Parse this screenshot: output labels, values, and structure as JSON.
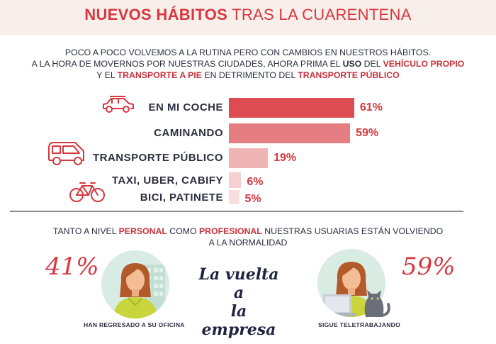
{
  "header": {
    "title_bold": "NUEVOS HÁBITOS",
    "title_light": "TRAS LA CUARENTENA"
  },
  "intro": {
    "line1": "POCO A POCO VOLVEMOS A LA RUTINA PERO CON CAMBIOS EN NUESTROS HÁBITOS.",
    "line2_a": "A LA HORA DE MOVERNOS POR NUESTRAS CIUDADES, AHORA PRIMA EL ",
    "line2_b": "USO",
    "line2_c": " DEL ",
    "line2_d": "VEHÍCULO PROPIO",
    "line3_a": "Y EL ",
    "line3_b": "TRANSPORTE A PIE",
    "line3_c": " EN DETRIMENTO DEL ",
    "line3_d": "TRANSPORTE PÚBLICO"
  },
  "chart_data": {
    "type": "bar",
    "orientation": "horizontal",
    "categories": [
      "EN MI COCHE",
      "CAMINANDO",
      "TRANSPORTE PÚBLICO",
      "TAXI, UBER, CABIFY",
      "BICI, PATINETE"
    ],
    "values": [
      61,
      59,
      19,
      6,
      5
    ],
    "value_labels": [
      "61%",
      "59%",
      "19%",
      "6%",
      "5%"
    ],
    "bar_colors": [
      "#dc4c50",
      "#e57e83",
      "#f1b4b5",
      "#f6cfd0",
      "#f9dedf"
    ],
    "value_color": "#d7373f",
    "xlim": [
      0,
      100
    ]
  },
  "icons": {
    "car": "car-icon",
    "bus": "bus-icon",
    "bike": "bicycle-icon",
    "person_office": "woman-office-icon",
    "person_remote": "woman-laptop-cat-icon"
  },
  "normality": {
    "line1_a": "TANTO A NIVEL ",
    "line1_b": "PERSONAL",
    "line1_c": " COMO ",
    "line1_d": "PROFESIONAL",
    "line1_e": " NUESTRAS USUARIAS ESTÁN VOLVIENDO",
    "line2": "A LA NORMALIDAD",
    "left_pct": "41%",
    "left_caption": "HAN REGRESADO  A SU OFICINA",
    "center_line1": "La vuelta a",
    "center_line2": "la empresa",
    "right_pct": "59%",
    "right_caption": "SIGUE TELETRABAJANDO"
  }
}
